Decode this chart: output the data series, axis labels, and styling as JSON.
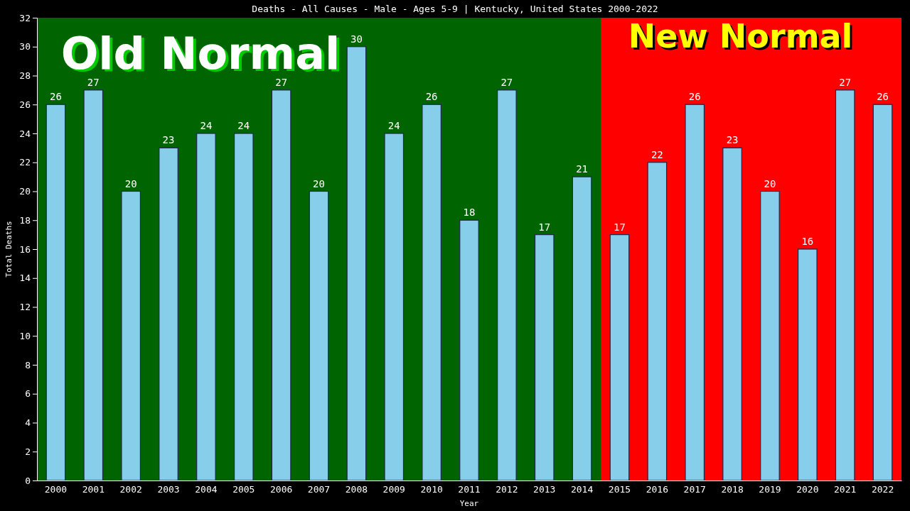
{
  "chart_data": {
    "type": "bar",
    "title": "Deaths - All Causes - Male - Ages 5-9 | Kentucky, United States 2000-2022",
    "xlabel": "Year",
    "ylabel": "Total Deaths",
    "categories": [
      "2000",
      "2001",
      "2002",
      "2003",
      "2004",
      "2005",
      "2006",
      "2007",
      "2008",
      "2009",
      "2010",
      "2011",
      "2012",
      "2013",
      "2014",
      "2015",
      "2016",
      "2017",
      "2018",
      "2019",
      "2020",
      "2021",
      "2022"
    ],
    "values": [
      26,
      27,
      20,
      23,
      24,
      24,
      27,
      20,
      30,
      24,
      26,
      18,
      27,
      17,
      21,
      17,
      22,
      26,
      23,
      20,
      16,
      27,
      26
    ],
    "color": "#87ceeb",
    "ylim": [
      0,
      32
    ],
    "yticks": [
      0,
      2,
      4,
      6,
      8,
      10,
      12,
      14,
      16,
      18,
      20,
      22,
      24,
      26,
      28,
      30,
      32
    ],
    "data_labels": true,
    "bands": [
      {
        "axis": "x",
        "from": "2000",
        "to": "2014",
        "label": "Old Normal",
        "color": "#006400"
      },
      {
        "axis": "x",
        "from": "2015",
        "to": "2022",
        "label": "New Normal",
        "color": "#ff0000"
      }
    ]
  }
}
